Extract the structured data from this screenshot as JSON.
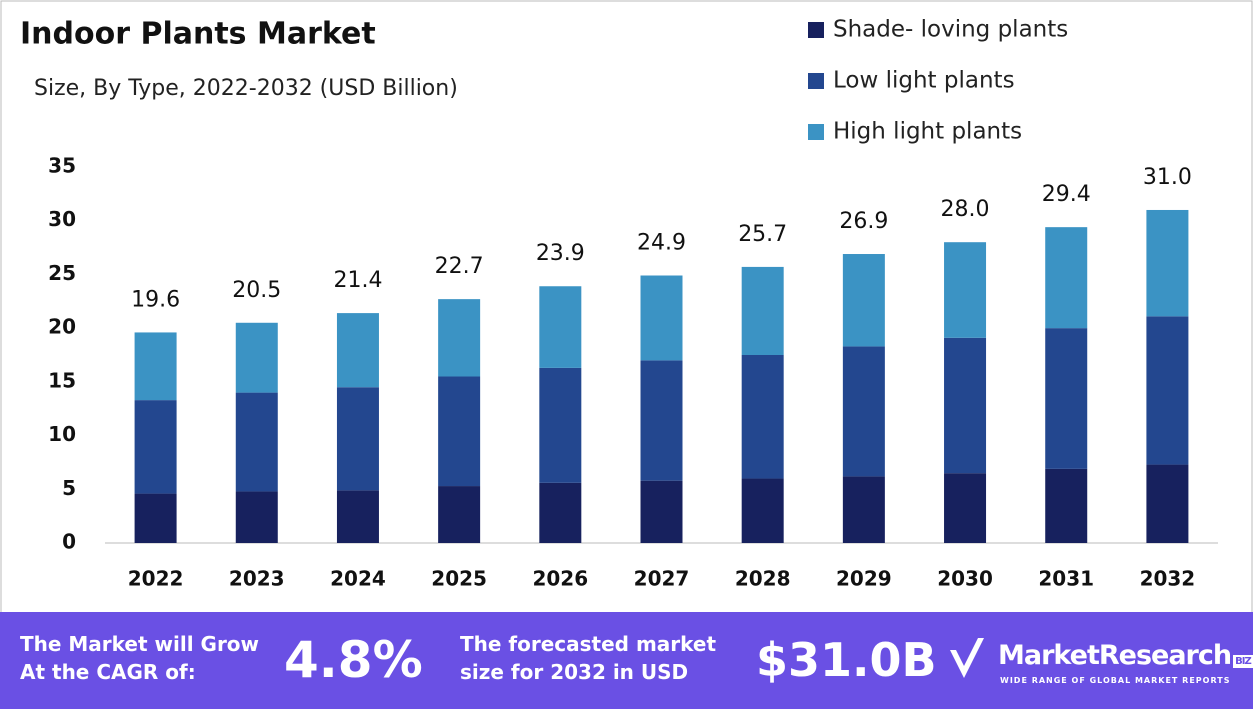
{
  "chart_data": {
    "type": "stacked-bar",
    "title": "Indoor Plants Market",
    "subtitle": "Size, By Type, 2022-2032 (USD Billion)",
    "categories": [
      "2022",
      "2023",
      "2024",
      "2025",
      "2026",
      "2027",
      "2028",
      "2029",
      "2030",
      "2031",
      "2032"
    ],
    "series": [
      {
        "name": "Shade- loving plants",
        "color": "#17215e",
        "values": [
          4.6,
          4.8,
          4.9,
          5.3,
          5.6,
          5.8,
          6.0,
          6.2,
          6.5,
          6.9,
          7.3
        ]
      },
      {
        "name": "Low light plants",
        "color": "#23478f",
        "values": [
          8.7,
          9.2,
          9.6,
          10.2,
          10.7,
          11.2,
          11.5,
          12.1,
          12.6,
          13.1,
          13.8
        ]
      },
      {
        "name": "High light plants",
        "color": "#3b93c4",
        "values": [
          6.3,
          6.5,
          6.9,
          7.2,
          7.6,
          7.9,
          8.2,
          8.6,
          8.9,
          9.4,
          9.9
        ]
      }
    ],
    "totals": {
      "values": [
        19.6,
        20.5,
        21.4,
        22.7,
        23.9,
        24.9,
        25.7,
        26.9,
        28.0,
        29.4,
        31.0
      ],
      "value_labels": [
        "19.6",
        "20.5",
        "21.4",
        "22.7",
        "23.9",
        "24.9",
        "25.7",
        "26.9",
        "28.0",
        "29.4",
        "31.0"
      ]
    },
    "ylim": [
      0,
      35
    ],
    "yticks": [
      0,
      5,
      10,
      15,
      20,
      25,
      30,
      35
    ],
    "grid": false,
    "legend": "top-right"
  },
  "footer": {
    "cagr_text": "The Market will Grow At the CAGR of:",
    "cagr": "4.8%",
    "forecast_text": "The forecasted market size for 2032 in USD",
    "forecast": "$31.0B",
    "brand": "MarketResearch",
    "brand_suffix": "BIZ",
    "tagline": "WIDE RANGE OF GLOBAL MARKET REPORTS"
  }
}
